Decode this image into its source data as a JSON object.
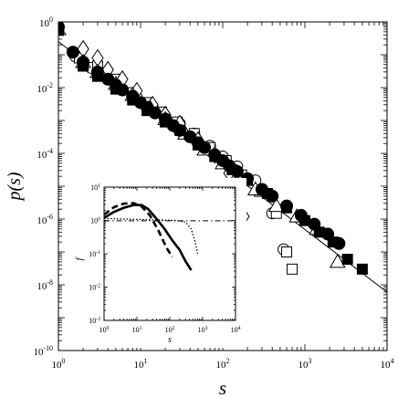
{
  "chart_data": [
    {
      "type": "scatter",
      "title": "",
      "xlabel": "s",
      "ylabel": "p(s)",
      "xscale": "log",
      "yscale": "log",
      "xlim": [
        1,
        10000
      ],
      "ylim": [
        1e-10,
        1
      ],
      "x_ticks": [
        {
          "value": 1,
          "exp": "0"
        },
        {
          "value": 10,
          "exp": "1"
        },
        {
          "value": 100,
          "exp": "2"
        },
        {
          "value": 1000,
          "exp": "3"
        },
        {
          "value": 10000,
          "exp": "4"
        }
      ],
      "y_ticks": [
        {
          "value": 1,
          "exp": "0"
        },
        {
          "value": 0.01,
          "exp": "-2"
        },
        {
          "value": 0.0001,
          "exp": "-4"
        },
        {
          "value": 1e-06,
          "exp": "-6"
        },
        {
          "value": 1e-08,
          "exp": "-8"
        },
        {
          "value": 1e-10,
          "exp": "-10"
        }
      ],
      "grid": false,
      "legend": "none",
      "series": [
        {
          "marker": "filled-circle",
          "points": [
            [
              1,
              0.7
            ],
            [
              1.5,
              0.12
            ],
            [
              2,
              0.06
            ],
            [
              3,
              0.03
            ],
            [
              4,
              0.018
            ],
            [
              5,
              0.012
            ],
            [
              6,
              0.0085
            ],
            [
              8,
              0.0055
            ],
            [
              10,
              0.0035
            ],
            [
              12,
              0.0025
            ],
            [
              15,
              0.0017
            ],
            [
              20,
              0.0011
            ],
            [
              25,
              0.0007
            ],
            [
              30,
              0.0005
            ],
            [
              40,
              0.00032
            ],
            [
              50,
              0.00021
            ],
            [
              60,
              0.00015
            ],
            [
              80,
              9e-05
            ],
            [
              100,
              6e-05
            ],
            [
              120,
              4.2e-05
            ],
            [
              150,
              2.8e-05
            ],
            [
              200,
              1.7e-05
            ],
            [
              300,
              8e-06
            ],
            [
              400,
              5e-06
            ],
            [
              600,
              2.5e-06
            ],
            [
              900,
              1.3e-06
            ],
            [
              1300,
              7e-07
            ],
            [
              1900,
              3.5e-07
            ],
            [
              2600,
              1.8e-07
            ]
          ]
        },
        {
          "marker": "filled-square",
          "points": [
            [
              1,
              0.55
            ],
            [
              2,
              0.045
            ],
            [
              3,
              0.022
            ],
            [
              5,
              0.009
            ],
            [
              8,
              0.0042
            ],
            [
              12,
              0.002
            ],
            [
              20,
              0.0009
            ],
            [
              30,
              0.0005
            ],
            [
              50,
              0.00018
            ],
            [
              80,
              8e-05
            ],
            [
              130,
              3.2e-05
            ],
            [
              200,
              1.5e-05
            ],
            [
              350,
              6e-06
            ],
            [
              600,
              2.2e-06
            ],
            [
              1000,
              9e-07
            ],
            [
              1500,
              4e-07
            ],
            [
              2200,
              2e-07
            ],
            [
              3300,
              6e-08
            ],
            [
              5000,
              3e-08
            ]
          ]
        },
        {
          "marker": "open-circle",
          "points": [
            [
              1,
              0.6
            ],
            [
              1.6,
              0.09
            ],
            [
              2.5,
              0.04
            ],
            [
              4,
              0.018
            ],
            [
              6,
              0.009
            ],
            [
              9,
              0.005
            ],
            [
              14,
              0.0025
            ],
            [
              20,
              0.0013
            ],
            [
              30,
              0.0008
            ],
            [
              45,
              0.0004
            ],
            [
              70,
              0.00017
            ],
            [
              100,
              8e-05
            ],
            [
              150,
              4e-05
            ],
            [
              250,
              1.5e-05
            ],
            [
              400,
              1.5e-06
            ],
            [
              550,
              1.2e-07
            ]
          ]
        },
        {
          "marker": "open-square",
          "points": [
            [
              1,
              0.62
            ],
            [
              1.8,
              0.08
            ],
            [
              3,
              0.045
            ],
            [
              5,
              0.018
            ],
            [
              8,
              0.007
            ],
            [
              12,
              0.0035
            ],
            [
              18,
              0.0018
            ],
            [
              28,
              0.0009
            ],
            [
              45,
              0.0004
            ],
            [
              70,
              0.00015
            ],
            [
              110,
              6e-05
            ],
            [
              170,
              2.2e-05
            ],
            [
              280,
              7e-06
            ],
            [
              450,
              1.5e-06
            ],
            [
              600,
              1e-07
            ],
            [
              700,
              3e-08
            ]
          ]
        },
        {
          "marker": "open-diamond",
          "points": [
            [
              1,
              0.75
            ],
            [
              2,
              0.15
            ],
            [
              3,
              0.08
            ],
            [
              4,
              0.035
            ],
            [
              6,
              0.018
            ],
            [
              9,
              0.008
            ],
            [
              14,
              0.003
            ],
            [
              20,
              0.0015
            ],
            [
              30,
              0.0008
            ],
            [
              50,
              0.00025
            ],
            [
              80,
              9e-05
            ],
            [
              120,
              2.5e-05
            ],
            [
              150,
              1.2e-05
            ],
            [
              160,
              4e-06
            ],
            [
              180,
              1.2e-06
            ]
          ]
        },
        {
          "marker": "open-triangle",
          "points": [
            [
              1,
              0.6
            ],
            [
              2,
              0.06
            ],
            [
              3,
              0.03
            ],
            [
              5,
              0.013
            ],
            [
              8,
              0.006
            ],
            [
              13,
              0.0025
            ],
            [
              20,
              0.0011
            ],
            [
              35,
              0.0004
            ],
            [
              60,
              0.00013
            ],
            [
              100,
              5e-05
            ],
            [
              160,
              2e-05
            ],
            [
              250,
              8e-06
            ],
            [
              450,
              2.5e-06
            ],
            [
              800,
              1.2e-06
            ],
            [
              1400,
              5e-07
            ],
            [
              2500,
              5e-08
            ]
          ]
        }
      ],
      "fit_line": {
        "style": "solid",
        "points": [
          [
            1,
            0.25
          ],
          [
            10000,
            6e-09
          ]
        ]
      }
    },
    {
      "type": "line",
      "title": "",
      "xlabel": "s",
      "ylabel": "f",
      "xscale": "log",
      "yscale": "log",
      "xlim": [
        1,
        10000
      ],
      "ylim": [
        0.001,
        10
      ],
      "x_ticks": [
        {
          "value": 1,
          "exp": "0"
        },
        {
          "value": 10,
          "exp": "1"
        },
        {
          "value": 100,
          "exp": "2"
        },
        {
          "value": 1000,
          "exp": "3"
        },
        {
          "value": 10000,
          "exp": "4"
        }
      ],
      "y_ticks": [
        {
          "value": 10,
          "exp": "1"
        },
        {
          "value": 1,
          "exp": "0"
        },
        {
          "value": 0.1,
          "exp": "-1"
        },
        {
          "value": 0.01,
          "exp": "-2"
        },
        {
          "value": 0.001,
          "exp": "-3"
        }
      ],
      "grid": false,
      "legend": "none",
      "series": [
        {
          "style": "solid-thick",
          "points": [
            [
              1,
              1.2
            ],
            [
              2,
              1.8
            ],
            [
              4,
              2.4
            ],
            [
              8,
              2.9
            ],
            [
              14,
              2.9
            ],
            [
              22,
              2.2
            ],
            [
              40,
              1.1
            ],
            [
              70,
              0.55
            ],
            [
              120,
              0.25
            ],
            [
              200,
              0.13
            ],
            [
              300,
              0.06
            ],
            [
              450,
              0.032
            ]
          ]
        },
        {
          "style": "dashed-thick",
          "points": [
            [
              1,
              1.5
            ],
            [
              2,
              2.5
            ],
            [
              4,
              3.2
            ],
            [
              8,
              3.3
            ],
            [
              14,
              2.6
            ],
            [
              25,
              1.4
            ],
            [
              45,
              0.5
            ],
            [
              80,
              0.15
            ],
            [
              120,
              0.08
            ]
          ]
        },
        {
          "style": "dotted",
          "points": [
            [
              1,
              1.15
            ],
            [
              5,
              1.1
            ],
            [
              30,
              1.05
            ],
            [
              150,
              1.0
            ],
            [
              300,
              0.9
            ],
            [
              450,
              0.55
            ],
            [
              600,
              0.22
            ],
            [
              700,
              0.1
            ]
          ]
        },
        {
          "style": "dash-dot",
          "points": [
            [
              1,
              0.98
            ],
            [
              10,
              0.98
            ],
            [
              100,
              0.98
            ],
            [
              1000,
              0.98
            ],
            [
              10000,
              0.98
            ]
          ]
        }
      ]
    }
  ]
}
